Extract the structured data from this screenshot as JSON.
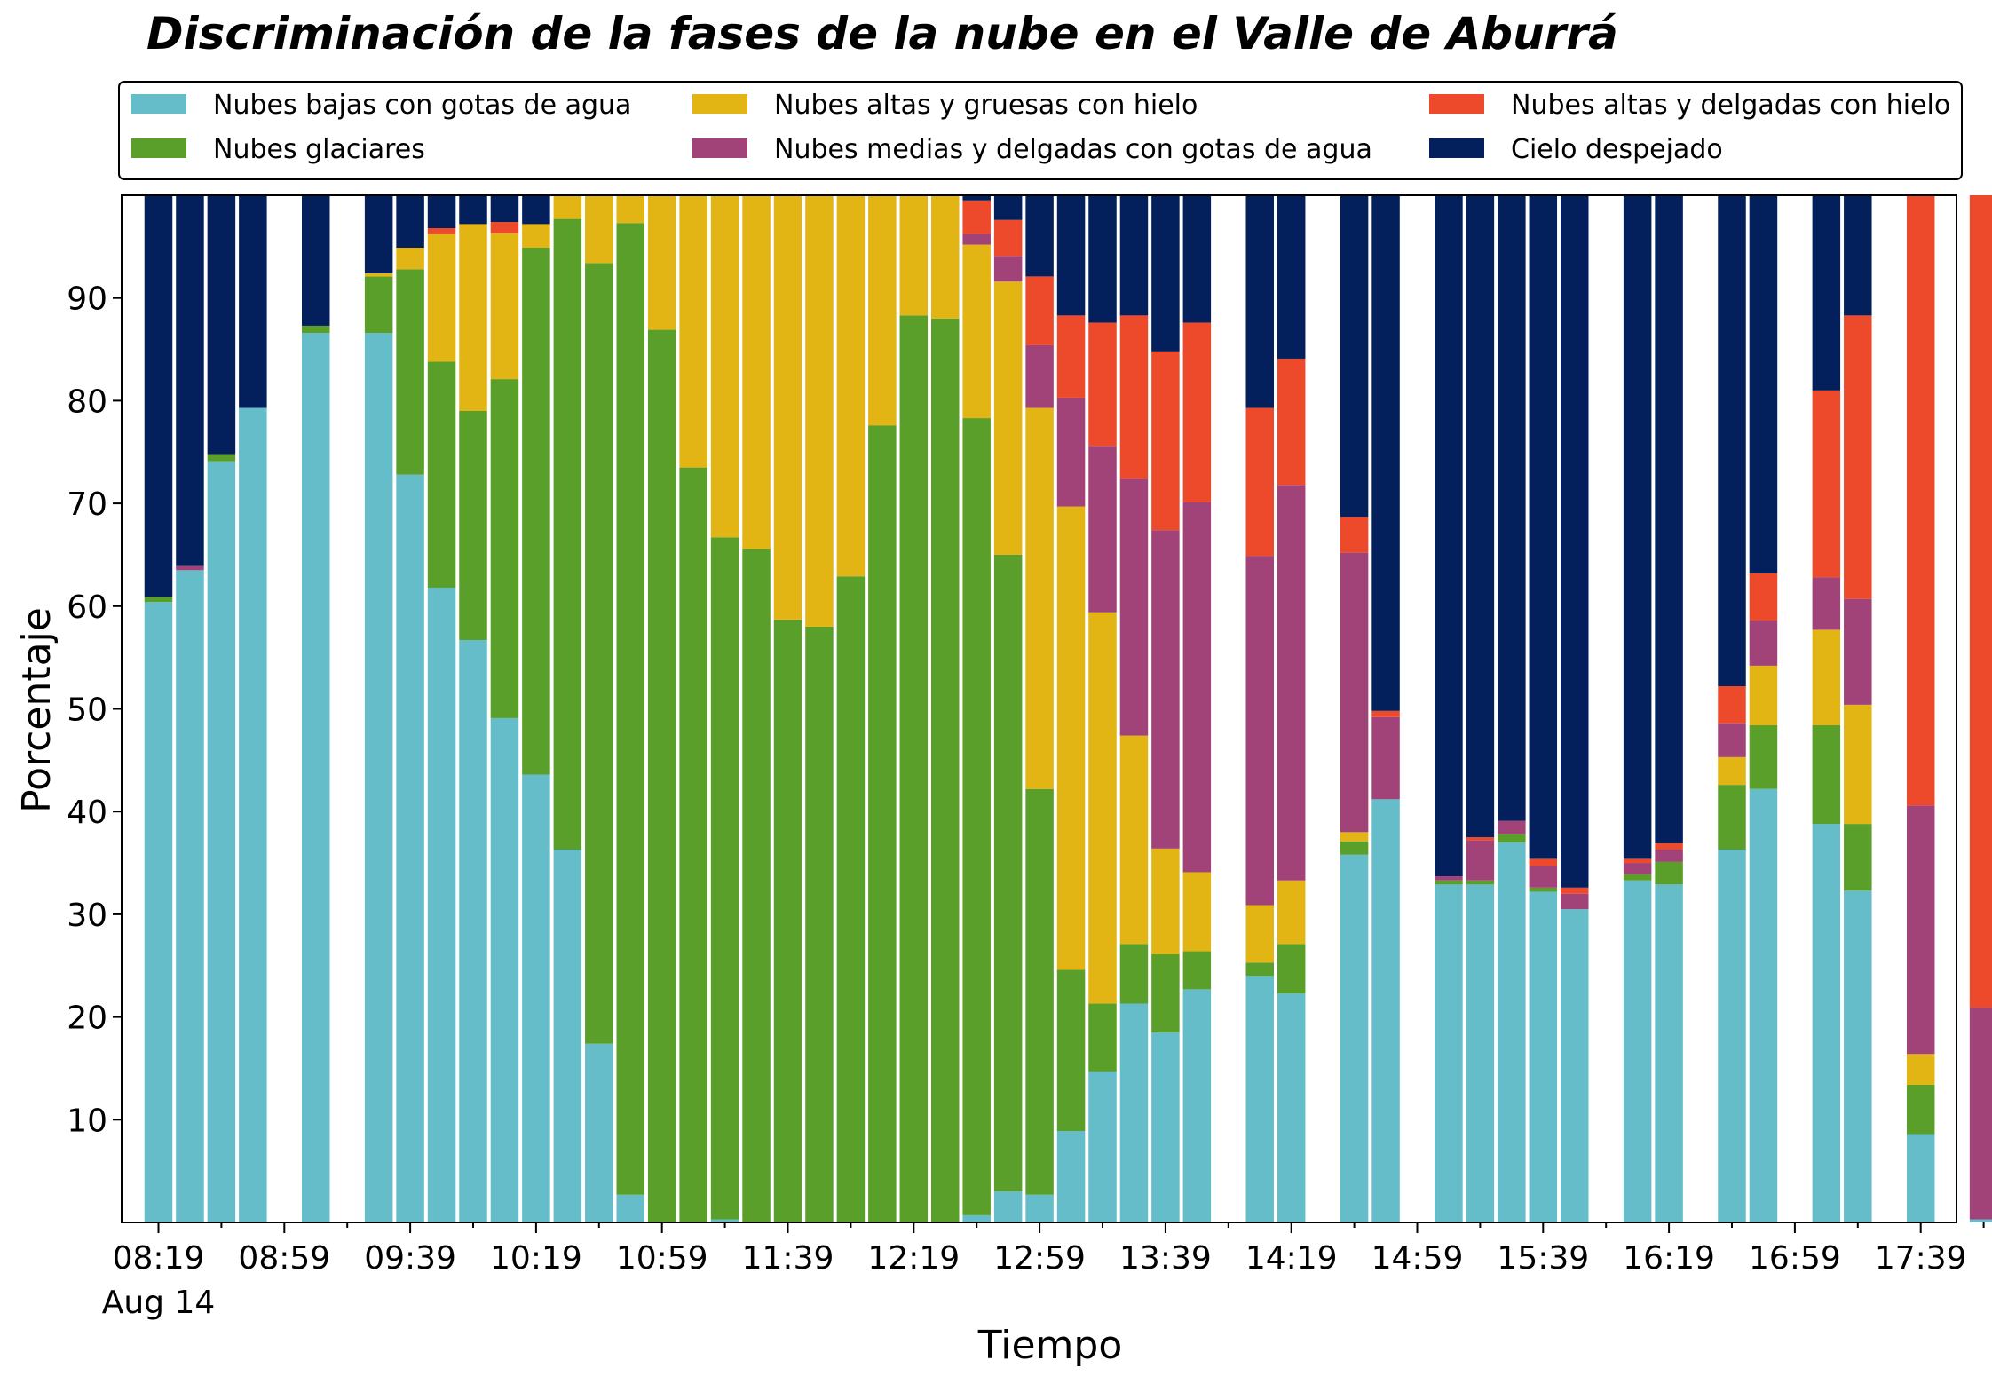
{
  "chart_data": {
    "type": "bar",
    "stacked": true,
    "title": "Discriminación de la fases de la nube en el Valle de Aburrá",
    "xlabel": "Tiempo",
    "ylabel": "Porcentaje",
    "ylim": [
      0,
      100
    ],
    "yticks": [
      10,
      20,
      30,
      40,
      50,
      60,
      70,
      80,
      90
    ],
    "legend_position": "top",
    "grid": false,
    "x_tick_labels": [
      {
        "label": "08:19",
        "slot": 0,
        "sub": "Aug 14"
      },
      {
        "label": "08:59",
        "slot": 4
      },
      {
        "label": "09:39",
        "slot": 8
      },
      {
        "label": "10:19",
        "slot": 12
      },
      {
        "label": "10:59",
        "slot": 16
      },
      {
        "label": "11:39",
        "slot": 20
      },
      {
        "label": "12:19",
        "slot": 24
      },
      {
        "label": "12:59",
        "slot": 28
      },
      {
        "label": "13:39",
        "slot": 32
      },
      {
        "label": "14:19",
        "slot": 36
      },
      {
        "label": "14:59",
        "slot": 40
      },
      {
        "label": "15:39",
        "slot": 44
      },
      {
        "label": "16:19",
        "slot": 48
      },
      {
        "label": "16:59",
        "slot": 52
      },
      {
        "label": "17:39",
        "slot": 56
      }
    ],
    "series_order": [
      "bajas",
      "glaciares",
      "altas_gruesas",
      "medias",
      "altas_delgadas",
      "despejado"
    ],
    "series": [
      {
        "id": "bajas",
        "name": "Nubes bajas con gotas de agua",
        "color": "#64bdc8"
      },
      {
        "id": "glaciares",
        "name": "Nubes glaciares",
        "color": "#5a9f2a"
      },
      {
        "id": "altas_gruesas",
        "name": "Nubes altas y gruesas con hielo",
        "color": "#e2b414"
      },
      {
        "id": "medias",
        "name": "Nubes medias y delgadas con gotas de agua",
        "color": "#a14278"
      },
      {
        "id": "altas_delgadas",
        "name": "Nubes altas y delgadas con hielo",
        "color": "#ec4a2b"
      },
      {
        "id": "despejado",
        "name": "Cielo despejado",
        "color": "#031f5c"
      }
    ],
    "legend_layout": [
      [
        "bajas",
        "altas_gruesas",
        "altas_delgadas"
      ],
      [
        "glaciares",
        "medias",
        "despejado"
      ]
    ],
    "bars": [
      {
        "slot": 0,
        "values": [
          60.4,
          0.5,
          0,
          0,
          0,
          39.1
        ]
      },
      {
        "slot": 1,
        "values": [
          63.5,
          0,
          0,
          0.4,
          0,
          36.1
        ]
      },
      {
        "slot": 2,
        "values": [
          74.1,
          0.7,
          0,
          0,
          0,
          25.2
        ]
      },
      {
        "slot": 3,
        "values": [
          79.3,
          0,
          0,
          0,
          0,
          20.7
        ]
      },
      {
        "slot": 5,
        "values": [
          86.6,
          0.7,
          0,
          0,
          0,
          12.7
        ]
      },
      {
        "slot": 7,
        "values": [
          86.6,
          5.5,
          0.3,
          0,
          0,
          7.6
        ]
      },
      {
        "slot": 8,
        "values": [
          72.8,
          20.0,
          2.1,
          0,
          0,
          5.1
        ]
      },
      {
        "slot": 9,
        "values": [
          61.8,
          22.0,
          12.4,
          0,
          0.6,
          3.2
        ]
      },
      {
        "slot": 10,
        "values": [
          56.7,
          22.3,
          18.2,
          0,
          0,
          2.8
        ]
      },
      {
        "slot": 11,
        "values": [
          49.1,
          33.0,
          14.2,
          0,
          1.1,
          2.6
        ]
      },
      {
        "slot": 12,
        "values": [
          43.6,
          51.3,
          2.3,
          0,
          0,
          2.8
        ]
      },
      {
        "slot": 13,
        "values": [
          36.3,
          61.4,
          2.3,
          0,
          0,
          0
        ]
      },
      {
        "slot": 14,
        "values": [
          17.4,
          76.0,
          6.6,
          0,
          0,
          0
        ]
      },
      {
        "slot": 15,
        "values": [
          2.7,
          94.6,
          2.7,
          0,
          0,
          0
        ]
      },
      {
        "slot": 16,
        "values": [
          0,
          86.9,
          13.1,
          0,
          0,
          0
        ]
      },
      {
        "slot": 17,
        "values": [
          0,
          73.5,
          26.5,
          0,
          0,
          0
        ]
      },
      {
        "slot": 18,
        "values": [
          0.3,
          66.4,
          33.3,
          0,
          0,
          0
        ]
      },
      {
        "slot": 19,
        "values": [
          0,
          65.6,
          34.4,
          0,
          0,
          0
        ]
      },
      {
        "slot": 20,
        "values": [
          0,
          58.7,
          41.3,
          0,
          0,
          0
        ]
      },
      {
        "slot": 21,
        "values": [
          0,
          58.0,
          42.0,
          0,
          0,
          0
        ]
      },
      {
        "slot": 22,
        "values": [
          0,
          62.9,
          37.1,
          0,
          0,
          0
        ]
      },
      {
        "slot": 23,
        "values": [
          0,
          77.6,
          22.4,
          0,
          0,
          0
        ]
      },
      {
        "slot": 24,
        "values": [
          0,
          88.3,
          11.7,
          0,
          0,
          0
        ]
      },
      {
        "slot": 25,
        "values": [
          0,
          88.0,
          12.0,
          0,
          0,
          0
        ]
      },
      {
        "slot": 26,
        "values": [
          0.7,
          77.6,
          16.9,
          1.0,
          3.3,
          0.5
        ]
      },
      {
        "slot": 27,
        "values": [
          3.0,
          62.0,
          26.6,
          2.5,
          3.5,
          2.4
        ]
      },
      {
        "slot": 28,
        "values": [
          2.7,
          39.5,
          37.1,
          6.1,
          6.7,
          7.9
        ]
      },
      {
        "slot": 29,
        "values": [
          8.9,
          15.7,
          45.1,
          10.6,
          8.0,
          11.7
        ]
      },
      {
        "slot": 30,
        "values": [
          14.7,
          6.6,
          38.1,
          16.2,
          12.0,
          12.4
        ]
      },
      {
        "slot": 31,
        "values": [
          21.3,
          5.8,
          20.3,
          25.0,
          15.9,
          11.7
        ]
      },
      {
        "slot": 32,
        "values": [
          18.5,
          7.6,
          10.3,
          31.0,
          17.4,
          15.2
        ]
      },
      {
        "slot": 33,
        "values": [
          22.7,
          3.7,
          7.7,
          36.0,
          17.5,
          12.4
        ]
      },
      {
        "slot": 35,
        "values": [
          24.0,
          1.3,
          5.6,
          34.0,
          14.4,
          20.7
        ]
      },
      {
        "slot": 36,
        "values": [
          22.3,
          4.8,
          6.2,
          38.5,
          12.3,
          15.9
        ]
      },
      {
        "slot": 38,
        "values": [
          35.8,
          1.3,
          0.9,
          27.2,
          3.5,
          31.3
        ]
      },
      {
        "slot": 39,
        "values": [
          41.2,
          0,
          0,
          8.0,
          0.6,
          50.2
        ]
      },
      {
        "slot": 41,
        "values": [
          32.9,
          0.4,
          0,
          0.4,
          0,
          66.3
        ]
      },
      {
        "slot": 42,
        "values": [
          32.9,
          0.4,
          0,
          3.9,
          0.3,
          62.5
        ]
      },
      {
        "slot": 43,
        "values": [
          37.0,
          0.8,
          0,
          1.3,
          0,
          60.9
        ]
      },
      {
        "slot": 44,
        "values": [
          32.2,
          0.4,
          0,
          2.1,
          0.7,
          64.6
        ]
      },
      {
        "slot": 45,
        "values": [
          30.5,
          0,
          0,
          1.5,
          0.6,
          67.4
        ]
      },
      {
        "slot": 47,
        "values": [
          33.3,
          0.6,
          0,
          1.1,
          0.4,
          64.6
        ]
      },
      {
        "slot": 48,
        "values": [
          32.9,
          2.2,
          0,
          1.2,
          0.6,
          63.1
        ]
      },
      {
        "slot": 50,
        "values": [
          36.3,
          6.3,
          2.7,
          3.3,
          3.6,
          47.8
        ]
      },
      {
        "slot": 51,
        "values": [
          42.2,
          6.2,
          5.8,
          4.4,
          4.6,
          36.8
        ]
      },
      {
        "slot": 53,
        "values": [
          38.8,
          9.6,
          9.3,
          5.1,
          18.2,
          19.0
        ]
      },
      {
        "slot": 54,
        "values": [
          32.3,
          6.5,
          11.6,
          10.3,
          27.6,
          11.7
        ]
      },
      {
        "slot": 56,
        "values": [
          8.6,
          4.8,
          3.0,
          24.2,
          59.4,
          0
        ]
      },
      {
        "slot": 58,
        "values": [
          0.3,
          0,
          0,
          20.6,
          79.1,
          0
        ]
      }
    ]
  }
}
